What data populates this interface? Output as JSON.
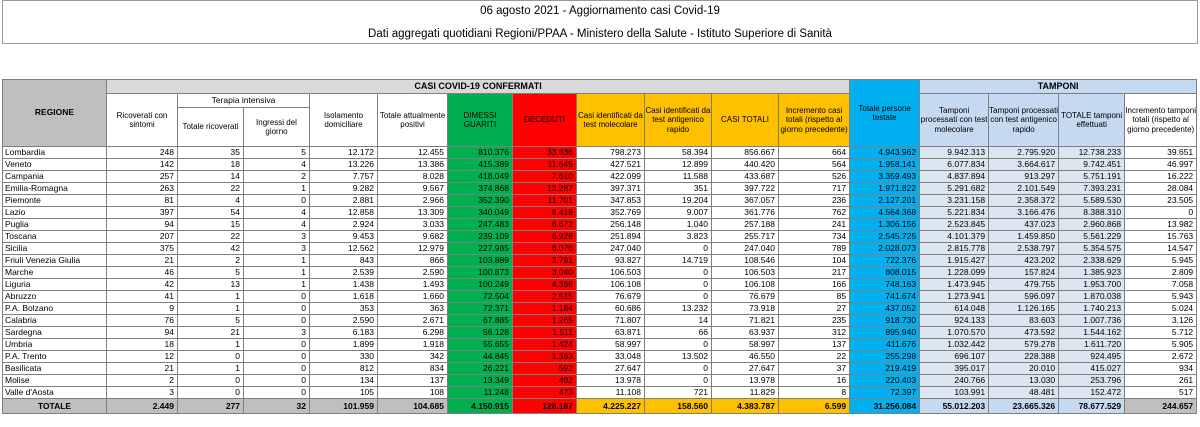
{
  "title": "06 agosto 2021 - Aggiornamento casi Covid-19",
  "subtitle": "Dati aggregati quotidiani Regioni/PPAA - Ministero della Salute - Istituto Superiore di Sanità",
  "header": {
    "regione": "REGIONE",
    "group_casi": "CASI COVID-19 CONFERMATI",
    "group_tamponi": "TAMPONI",
    "terapia_intensiva": "Terapia intensiva",
    "columns": [
      "Ricoverati con sintomi",
      "Totale ricoverati",
      "Ingressi del giorno",
      "Isolamento domiciliare",
      "Totale attualmente positivi",
      "DIMESSI GUARITI",
      "DECEDUTI",
      "Casi identificati da test molecolare",
      "Casi identificati da test antigenico rapido",
      "CASI TOTALI",
      "Incremento casi totali (rispetto al giorno precedente)",
      "Totale persone testate",
      "Tamponi processati con test molecolare",
      "Tamponi processati con test antigenico rapido",
      "TOTALE tamponi effettuati",
      "Incremento tamponi totali (rispetto al giorno precedente)"
    ]
  },
  "rows": [
    {
      "name": "Lombardia",
      "v": [
        "248",
        "35",
        "5",
        "12.172",
        "12.455",
        "810.376",
        "33.836",
        "798.273",
        "58.394",
        "856.667",
        "664",
        "4.943.962",
        "9.942.313",
        "2.795.920",
        "12.738.233",
        "39.651"
      ]
    },
    {
      "name": "Veneto",
      "v": [
        "142",
        "18",
        "4",
        "13.226",
        "13.386",
        "415.389",
        "11.645",
        "427.521",
        "12.899",
        "440.420",
        "564",
        "1.958.141",
        "6.077.834",
        "3.664.617",
        "9.742.451",
        "46.997"
      ]
    },
    {
      "name": "Campania",
      "v": [
        "257",
        "14",
        "2",
        "7.757",
        "8.028",
        "418.049",
        "7.610",
        "422.099",
        "11.588",
        "433.687",
        "526",
        "3.359.493",
        "4.837.894",
        "913.297",
        "5.751.191",
        "16.222"
      ]
    },
    {
      "name": "Emilia-Romagna",
      "v": [
        "263",
        "22",
        "1",
        "9.282",
        "9.567",
        "374.868",
        "13.287",
        "397.371",
        "351",
        "397.722",
        "717",
        "1.971.822",
        "5.291.682",
        "2.101.549",
        "7.393.231",
        "28.084"
      ]
    },
    {
      "name": "Piemonte",
      "v": [
        "81",
        "4",
        "0",
        "2.881",
        "2.966",
        "352.390",
        "11.701",
        "347.853",
        "19.204",
        "367.057",
        "236",
        "2.127.201",
        "3.231.158",
        "2.358.372",
        "5.589.530",
        "23.505"
      ]
    },
    {
      "name": "Lazio",
      "v": [
        "397",
        "54",
        "4",
        "12.858",
        "13.309",
        "340.049",
        "8.418",
        "352.769",
        "9.007",
        "361.776",
        "762",
        "4.564.368",
        "5.221.834",
        "3.166.476",
        "8.388.310",
        "0"
      ]
    },
    {
      "name": "Puglia",
      "v": [
        "94",
        "15",
        "4",
        "2.924",
        "3.033",
        "247.483",
        "6.672",
        "256.148",
        "1.040",
        "257.188",
        "241",
        "1.306.156",
        "2.523.845",
        "437.023",
        "2.960.868",
        "13.982"
      ]
    },
    {
      "name": "Toscana",
      "v": [
        "207",
        "22",
        "3",
        "9.453",
        "9.682",
        "239.109",
        "6.926",
        "251.894",
        "3.823",
        "255.717",
        "734",
        "2.545.725",
        "4.101.379",
        "1.459.850",
        "5.561.229",
        "15.763"
      ]
    },
    {
      "name": "Sicilia",
      "v": [
        "375",
        "42",
        "3",
        "12.562",
        "12.979",
        "227.985",
        "6.076",
        "247.040",
        "0",
        "247.040",
        "789",
        "2.028.073",
        "2.815.778",
        "2.538.797",
        "5.354.575",
        "14.547"
      ]
    },
    {
      "name": "Friuli Venezia Giulia",
      "v": [
        "21",
        "2",
        "1",
        "843",
        "866",
        "103.889",
        "3.791",
        "93.827",
        "14.719",
        "108.546",
        "104",
        "722.376",
        "1.915.427",
        "423.202",
        "2.338.629",
        "5.945"
      ]
    },
    {
      "name": "Marche",
      "v": [
        "46",
        "5",
        "1",
        "2.539",
        "2.590",
        "100.873",
        "3.040",
        "106.503",
        "0",
        "106.503",
        "217",
        "808.015",
        "1.228.099",
        "157.824",
        "1.385.923",
        "2.809"
      ]
    },
    {
      "name": "Liguria",
      "v": [
        "42",
        "13",
        "1",
        "1.438",
        "1.493",
        "100.249",
        "4.366",
        "106.108",
        "0",
        "106.108",
        "166",
        "748.163",
        "1.473.945",
        "479.755",
        "1.953.700",
        "7.058"
      ]
    },
    {
      "name": "Abruzzo",
      "v": [
        "41",
        "1",
        "0",
        "1.618",
        "1.660",
        "72.504",
        "2.515",
        "76.679",
        "0",
        "76.679",
        "85",
        "741.674",
        "1.273.941",
        "596.097",
        "1.870.038",
        "5.943"
      ]
    },
    {
      "name": "P.A. Bolzano",
      "v": [
        "9",
        "1",
        "0",
        "353",
        "363",
        "72.371",
        "1.184",
        "60.686",
        "13.232",
        "73.918",
        "27",
        "437.052",
        "614.048",
        "1.126.165",
        "1.740.213",
        "5.024"
      ]
    },
    {
      "name": "Calabria",
      "v": [
        "76",
        "5",
        "0",
        "2.590",
        "2.671",
        "67.885",
        "1.265",
        "71.807",
        "14",
        "71.821",
        "235",
        "918.730",
        "924.133",
        "83.603",
        "1.007.736",
        "3.126"
      ]
    },
    {
      "name": "Sardegna",
      "v": [
        "94",
        "21",
        "3",
        "6.183",
        "6.298",
        "56.128",
        "1.511",
        "63.871",
        "66",
        "63.937",
        "312",
        "895.940",
        "1.070.570",
        "473.592",
        "1.544.162",
        "5.712"
      ]
    },
    {
      "name": "Umbria",
      "v": [
        "18",
        "1",
        "0",
        "1.899",
        "1.918",
        "55.655",
        "1.424",
        "58.997",
        "0",
        "58.997",
        "137",
        "411.676",
        "1.032.442",
        "579.278",
        "1.611.720",
        "5.905"
      ]
    },
    {
      "name": "P.A. Trento",
      "v": [
        "12",
        "0",
        "0",
        "330",
        "342",
        "44.845",
        "1.363",
        "33.048",
        "13.502",
        "46.550",
        "22",
        "255.298",
        "696.107",
        "228.388",
        "924.495",
        "2.672"
      ]
    },
    {
      "name": "Basilicata",
      "v": [
        "21",
        "1",
        "0",
        "812",
        "834",
        "26.221",
        "592",
        "27.647",
        "0",
        "27.647",
        "37",
        "219.419",
        "395.017",
        "20.010",
        "415.027",
        "934"
      ]
    },
    {
      "name": "Molise",
      "v": [
        "2",
        "0",
        "0",
        "134",
        "137",
        "13.349",
        "492",
        "13.978",
        "0",
        "13.978",
        "16",
        "220.403",
        "240.766",
        "13.030",
        "253.796",
        "261"
      ]
    },
    {
      "name": "Valle d'Aosta",
      "v": [
        "3",
        "0",
        "0",
        "105",
        "108",
        "11.248",
        "473",
        "11.108",
        "721",
        "11.829",
        "8",
        "72.397",
        "103.991",
        "48.481",
        "152.472",
        "517"
      ]
    }
  ],
  "totals": {
    "name": "TOTALE",
    "v": [
      "2.449",
      "277",
      "32",
      "101.959",
      "104.685",
      "4.150.915",
      "128.187",
      "4.225.227",
      "158.560",
      "4.383.787",
      "6.599",
      "31.256.084",
      "55.012.203",
      "23.665.326",
      "78.677.529",
      "244.657"
    ]
  },
  "colors": {
    "guariti": "#00b050",
    "deceduti": "#ff0000",
    "casi": "#ffc000",
    "persone_testate": "#00b0f0",
    "tamponi": "#c5d9f1"
  }
}
